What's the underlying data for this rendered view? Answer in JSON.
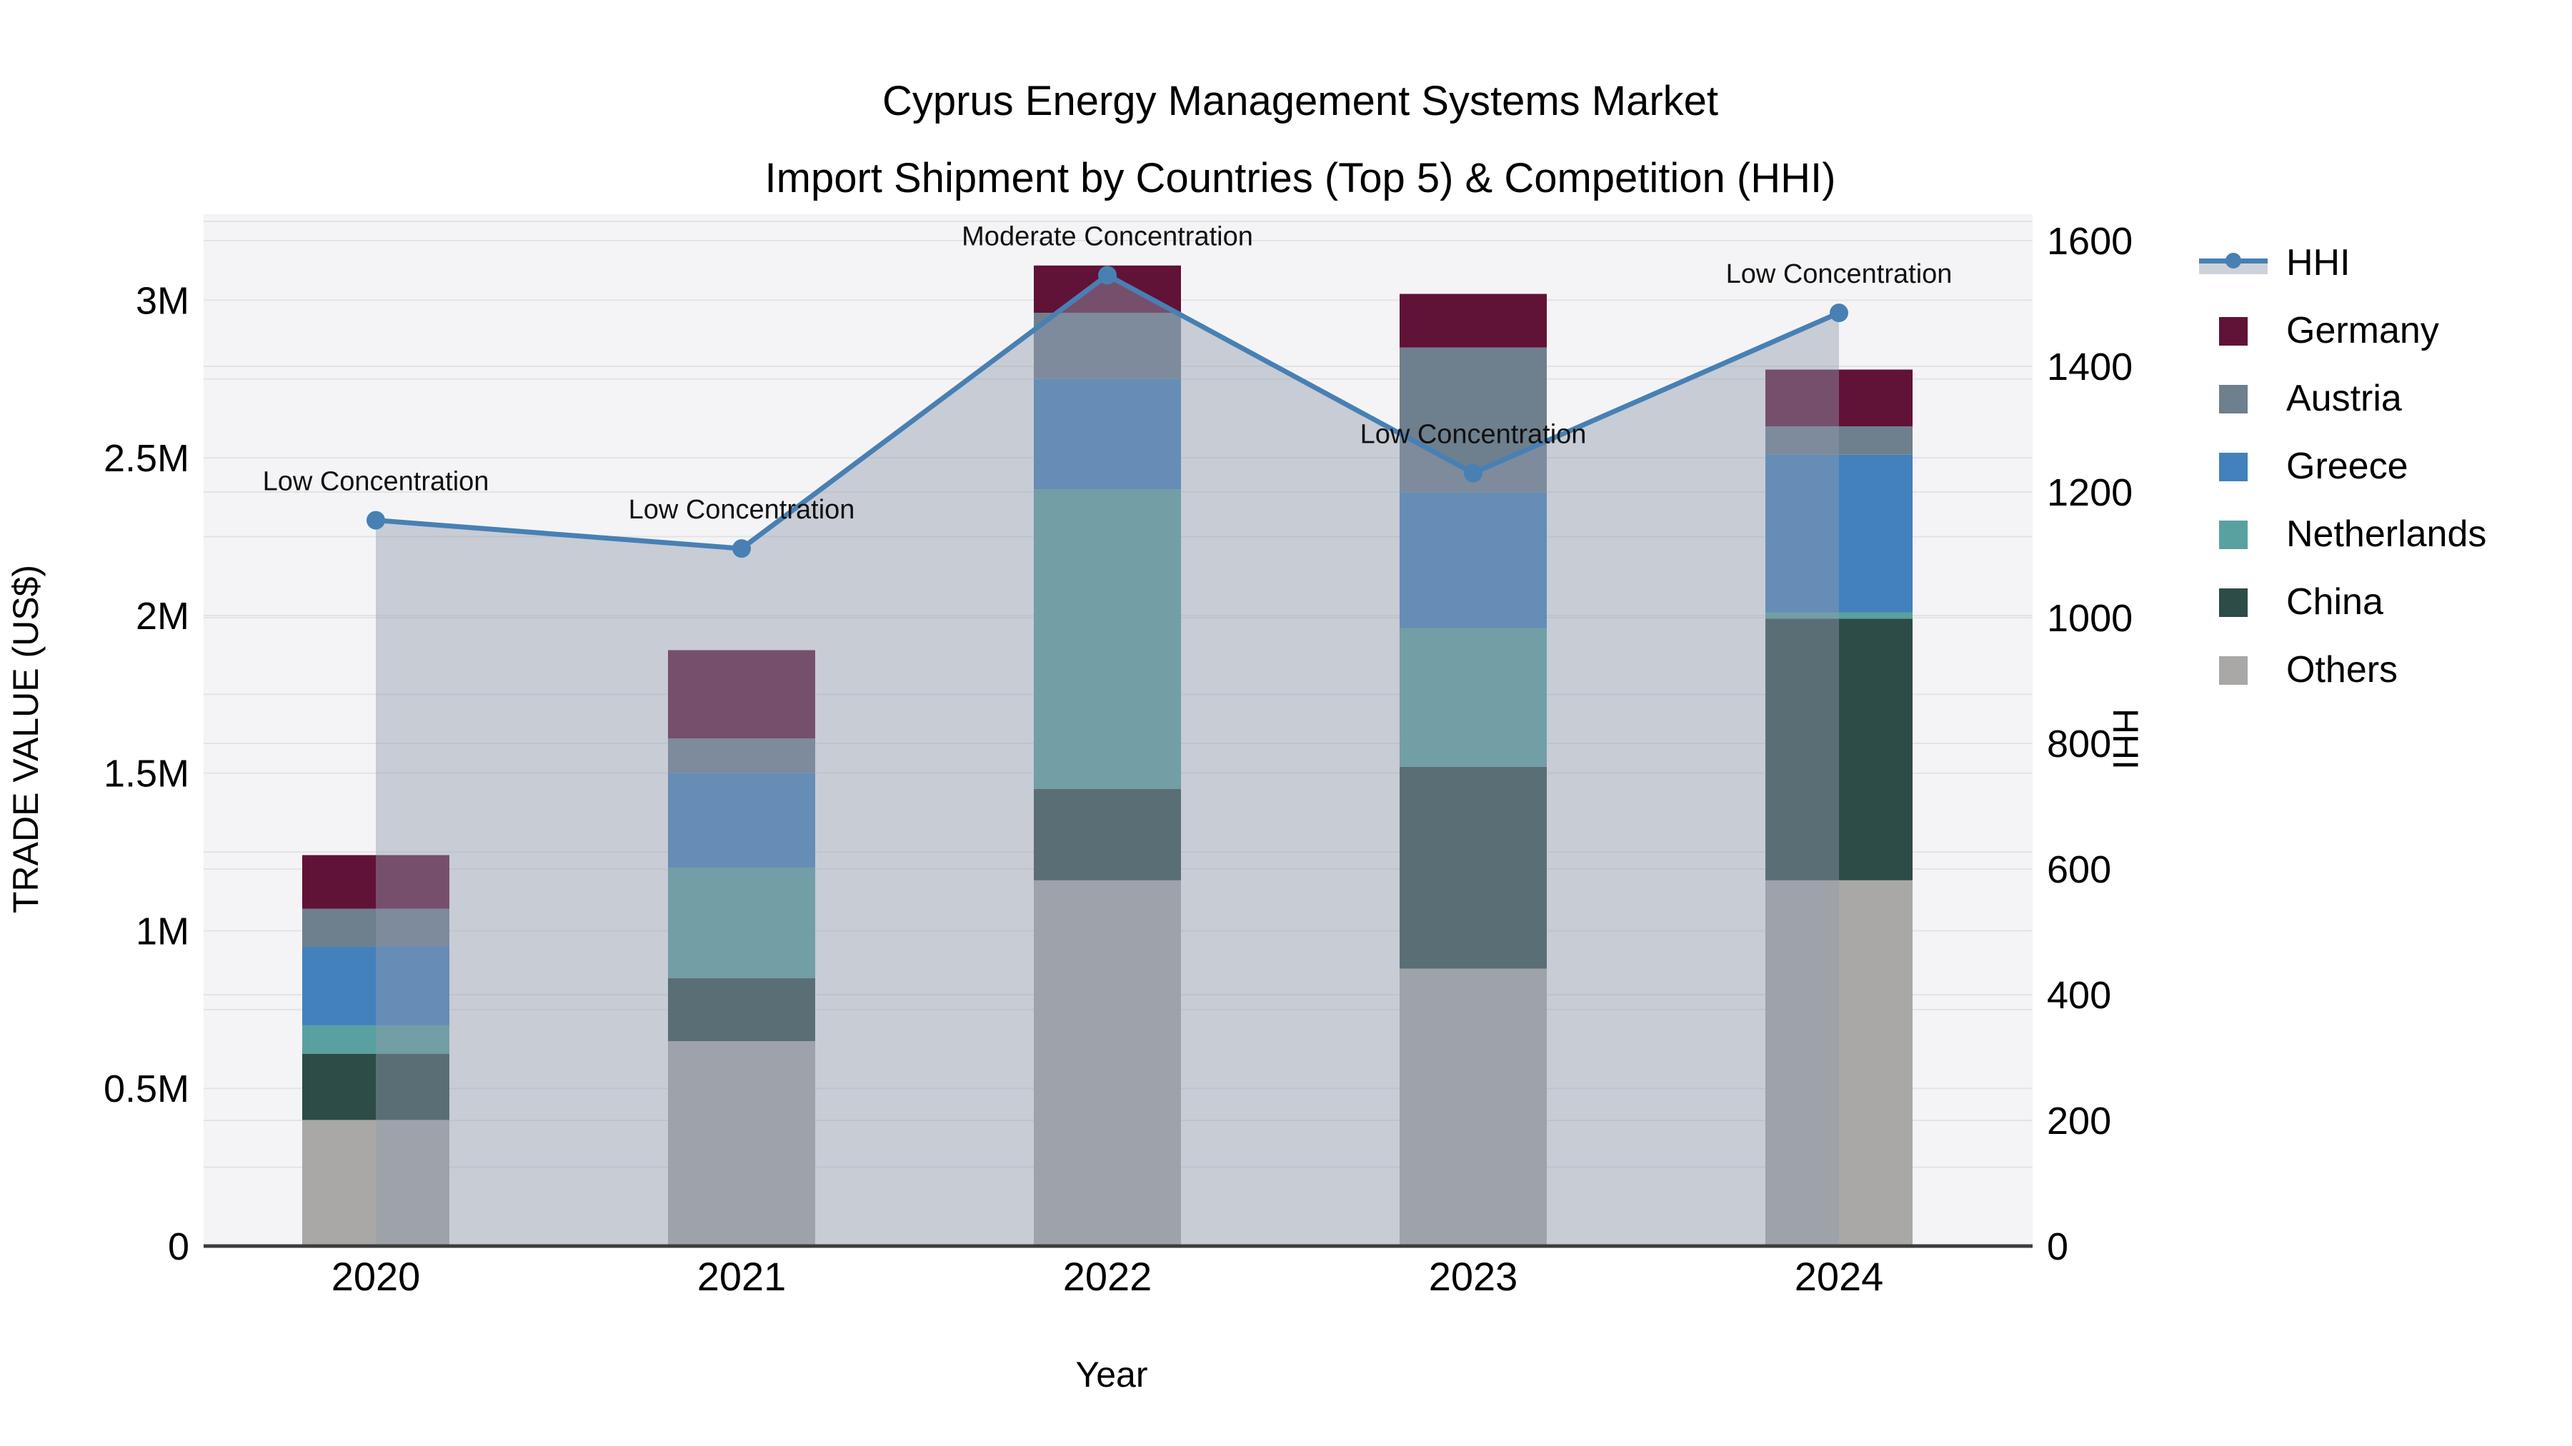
{
  "title": {
    "line1": "Cyprus Energy Management Systems Market",
    "line2": "Import Shipment by Countries (Top 5) & Competition (HHI)"
  },
  "axes": {
    "x": {
      "title": "Year",
      "tick_labels": [
        "2020",
        "2021",
        "2022",
        "2023",
        "2024"
      ]
    },
    "y_left": {
      "title": "TRADE VALUE (US$)",
      "tick_labels": [
        "0",
        "0.5M",
        "1M",
        "1.5M",
        "2M",
        "2.5M",
        "3M"
      ],
      "tick_values": [
        0,
        500000,
        1000000,
        1500000,
        2000000,
        2500000,
        3000000
      ],
      "range": [
        0,
        3272700
      ]
    },
    "y_right": {
      "title": "HHI",
      "tick_labels": [
        "0",
        "200",
        "400",
        "600",
        "800",
        "1000",
        "1200",
        "1400",
        "1600"
      ],
      "tick_values": [
        0,
        200,
        400,
        600,
        800,
        1000,
        1200,
        1400,
        1600
      ],
      "range": [
        0,
        1642
      ]
    }
  },
  "legend": {
    "items": [
      {
        "label": "HHI",
        "kind": "line-marker",
        "color": "#4880b4"
      },
      {
        "label": "Germany",
        "kind": "swatch",
        "color": "#611237"
      },
      {
        "label": "Austria",
        "kind": "swatch",
        "color": "#6e7f8e"
      },
      {
        "label": "Greece",
        "kind": "swatch",
        "color": "#4381bc"
      },
      {
        "label": "Netherlands",
        "kind": "swatch",
        "color": "#59a1a0"
      },
      {
        "label": "China",
        "kind": "swatch",
        "color": "#2d4b47"
      },
      {
        "label": "Others",
        "kind": "swatch",
        "color": "#a9a8a6"
      }
    ]
  },
  "chart_data": {
    "type": "combo-stacked-bar-line",
    "categories": [
      2020,
      2021,
      2022,
      2023,
      2024
    ],
    "bar_value_unit": "US$ millions",
    "stack_order_bottom_to_top": [
      "Others",
      "China",
      "Netherlands",
      "Greece",
      "Austria",
      "Germany"
    ],
    "bar_series": [
      {
        "name": "Germany",
        "color": "#611237",
        "values": [
          0.17,
          0.28,
          0.15,
          0.17,
          0.18
        ]
      },
      {
        "name": "Austria",
        "color": "#6e7f8e",
        "values": [
          0.12,
          0.11,
          0.21,
          0.46,
          0.09
        ]
      },
      {
        "name": "Greece",
        "color": "#4381bc",
        "values": [
          0.25,
          0.3,
          0.35,
          0.43,
          0.5
        ]
      },
      {
        "name": "Netherlands",
        "color": "#59a1a0",
        "values": [
          0.09,
          0.35,
          0.95,
          0.44,
          0.02
        ]
      },
      {
        "name": "China",
        "color": "#2d4b47",
        "values": [
          0.21,
          0.2,
          0.29,
          0.64,
          0.83
        ]
      },
      {
        "name": "Others",
        "color": "#a9a8a6",
        "values": [
          0.4,
          0.65,
          1.16,
          0.88,
          1.16
        ]
      }
    ],
    "bar_totals_millions": [
      1.24,
      1.89,
      3.11,
      3.02,
      2.78
    ],
    "line_series": {
      "name": "HHI",
      "values": [
        1155,
        1110,
        1545,
        1230,
        1485
      ],
      "color": "#4880b4",
      "area_fill": "rgba(144,155,173,0.45)",
      "point_annotations": [
        "Low Concentration",
        "Low Concentration",
        "Moderate Concentration",
        "Low Concentration",
        "Low Concentration"
      ]
    },
    "grid": {
      "left_axis_step": 250000,
      "right_axis_step": 200,
      "color": "#e3e3e6"
    },
    "plot_bg": "#f4f4f6",
    "axis_line_color": "#3c3c3c",
    "annotation_color": "#111111",
    "legend_position": "right",
    "grid_on": true
  },
  "colors": {
    "page_bg": "#ffffff",
    "text": "#000000"
  }
}
